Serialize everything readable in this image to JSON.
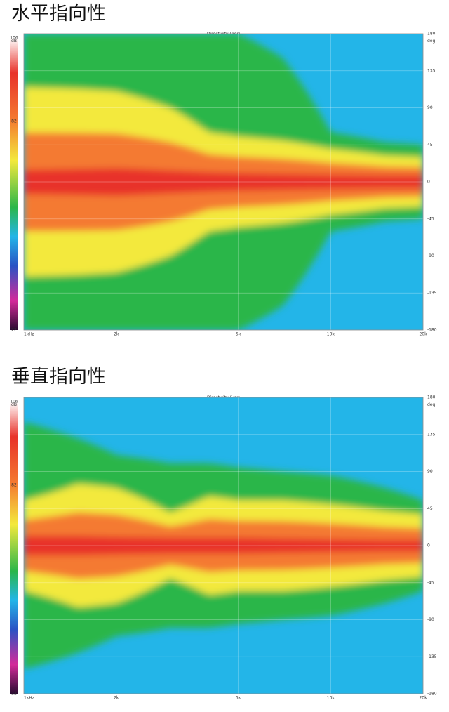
{
  "sections": [
    {
      "heading": "水平指向性"
    },
    {
      "heading": "垂直指向性"
    }
  ],
  "chart_data": [
    {
      "type": "heatmap",
      "title": "Directivity (hor)",
      "x_ticks": [
        "1kHz",
        "2k",
        "5k",
        "10k",
        "20k"
      ],
      "x_tick_freqs_hz": [
        1000,
        2000,
        5000,
        10000,
        20000
      ],
      "x_scale": "log",
      "xlim": [
        1000,
        20000
      ],
      "y_unit": "deg",
      "y_ticks": [
        180,
        135,
        90,
        45,
        0,
        -45,
        -90,
        -135,
        -180
      ],
      "ylim": [
        -180,
        180
      ],
      "colorbar": {
        "unit": "dB",
        "ticks": [
          106,
          82,
          22
        ],
        "range": [
          22,
          106
        ]
      },
      "beamwidth_profile": {
        "freq_hz": [
          1000,
          1500,
          2000,
          3000,
          4000,
          5000,
          7000,
          10000,
          15000,
          20000
        ],
        "red_core_deg": [
          15,
          16,
          17,
          14,
          12,
          11,
          10,
          9,
          8,
          8
        ],
        "yellow_deg": [
          115,
          113,
          110,
          90,
          60,
          55,
          50,
          40,
          32,
          30
        ],
        "green_deg": [
          180,
          180,
          180,
          180,
          180,
          180,
          150,
          60,
          48,
          45
        ]
      },
      "color_levels": {
        "red": "#e8322a",
        "orange": "#f47a30",
        "yellow": "#f3e93c",
        "green": "#2bb64a",
        "cyan": "#23b5e8",
        "blue": "#2a52c4",
        "magenta": "#d42a9a"
      },
      "grid": true
    },
    {
      "type": "heatmap",
      "title": "Directivity (ver)",
      "x_ticks": [
        "1kHz",
        "2k",
        "5k",
        "10k",
        "20k"
      ],
      "x_tick_freqs_hz": [
        1000,
        2000,
        5000,
        10000,
        20000
      ],
      "x_scale": "log",
      "xlim": [
        1000,
        20000
      ],
      "y_unit": "deg",
      "y_ticks": [
        180,
        135,
        90,
        45,
        0,
        -45,
        -90,
        -135,
        -180
      ],
      "ylim": [
        -180,
        180
      ],
      "colorbar": {
        "unit": "dB",
        "ticks": [
          106,
          82,
          22
        ],
        "range": [
          22,
          106
        ]
      },
      "beamwidth_profile": {
        "freq_hz": [
          1000,
          1500,
          2000,
          3000,
          4000,
          5000,
          7000,
          10000,
          15000,
          20000
        ],
        "red_core_deg": [
          12,
          12,
          11,
          10,
          10,
          10,
          9,
          8,
          7,
          7
        ],
        "yellow_deg": [
          55,
          75,
          70,
          40,
          60,
          55,
          55,
          50,
          42,
          38
        ],
        "green_deg": [
          150,
          130,
          110,
          100,
          100,
          95,
          90,
          85,
          70,
          55
        ]
      },
      "color_levels": {
        "red": "#e8322a",
        "orange": "#f47a30",
        "yellow": "#f3e93c",
        "green": "#2bb64a",
        "cyan": "#23b5e8",
        "blue": "#2a52c4",
        "magenta": "#d42a9a"
      },
      "grid": true
    }
  ]
}
